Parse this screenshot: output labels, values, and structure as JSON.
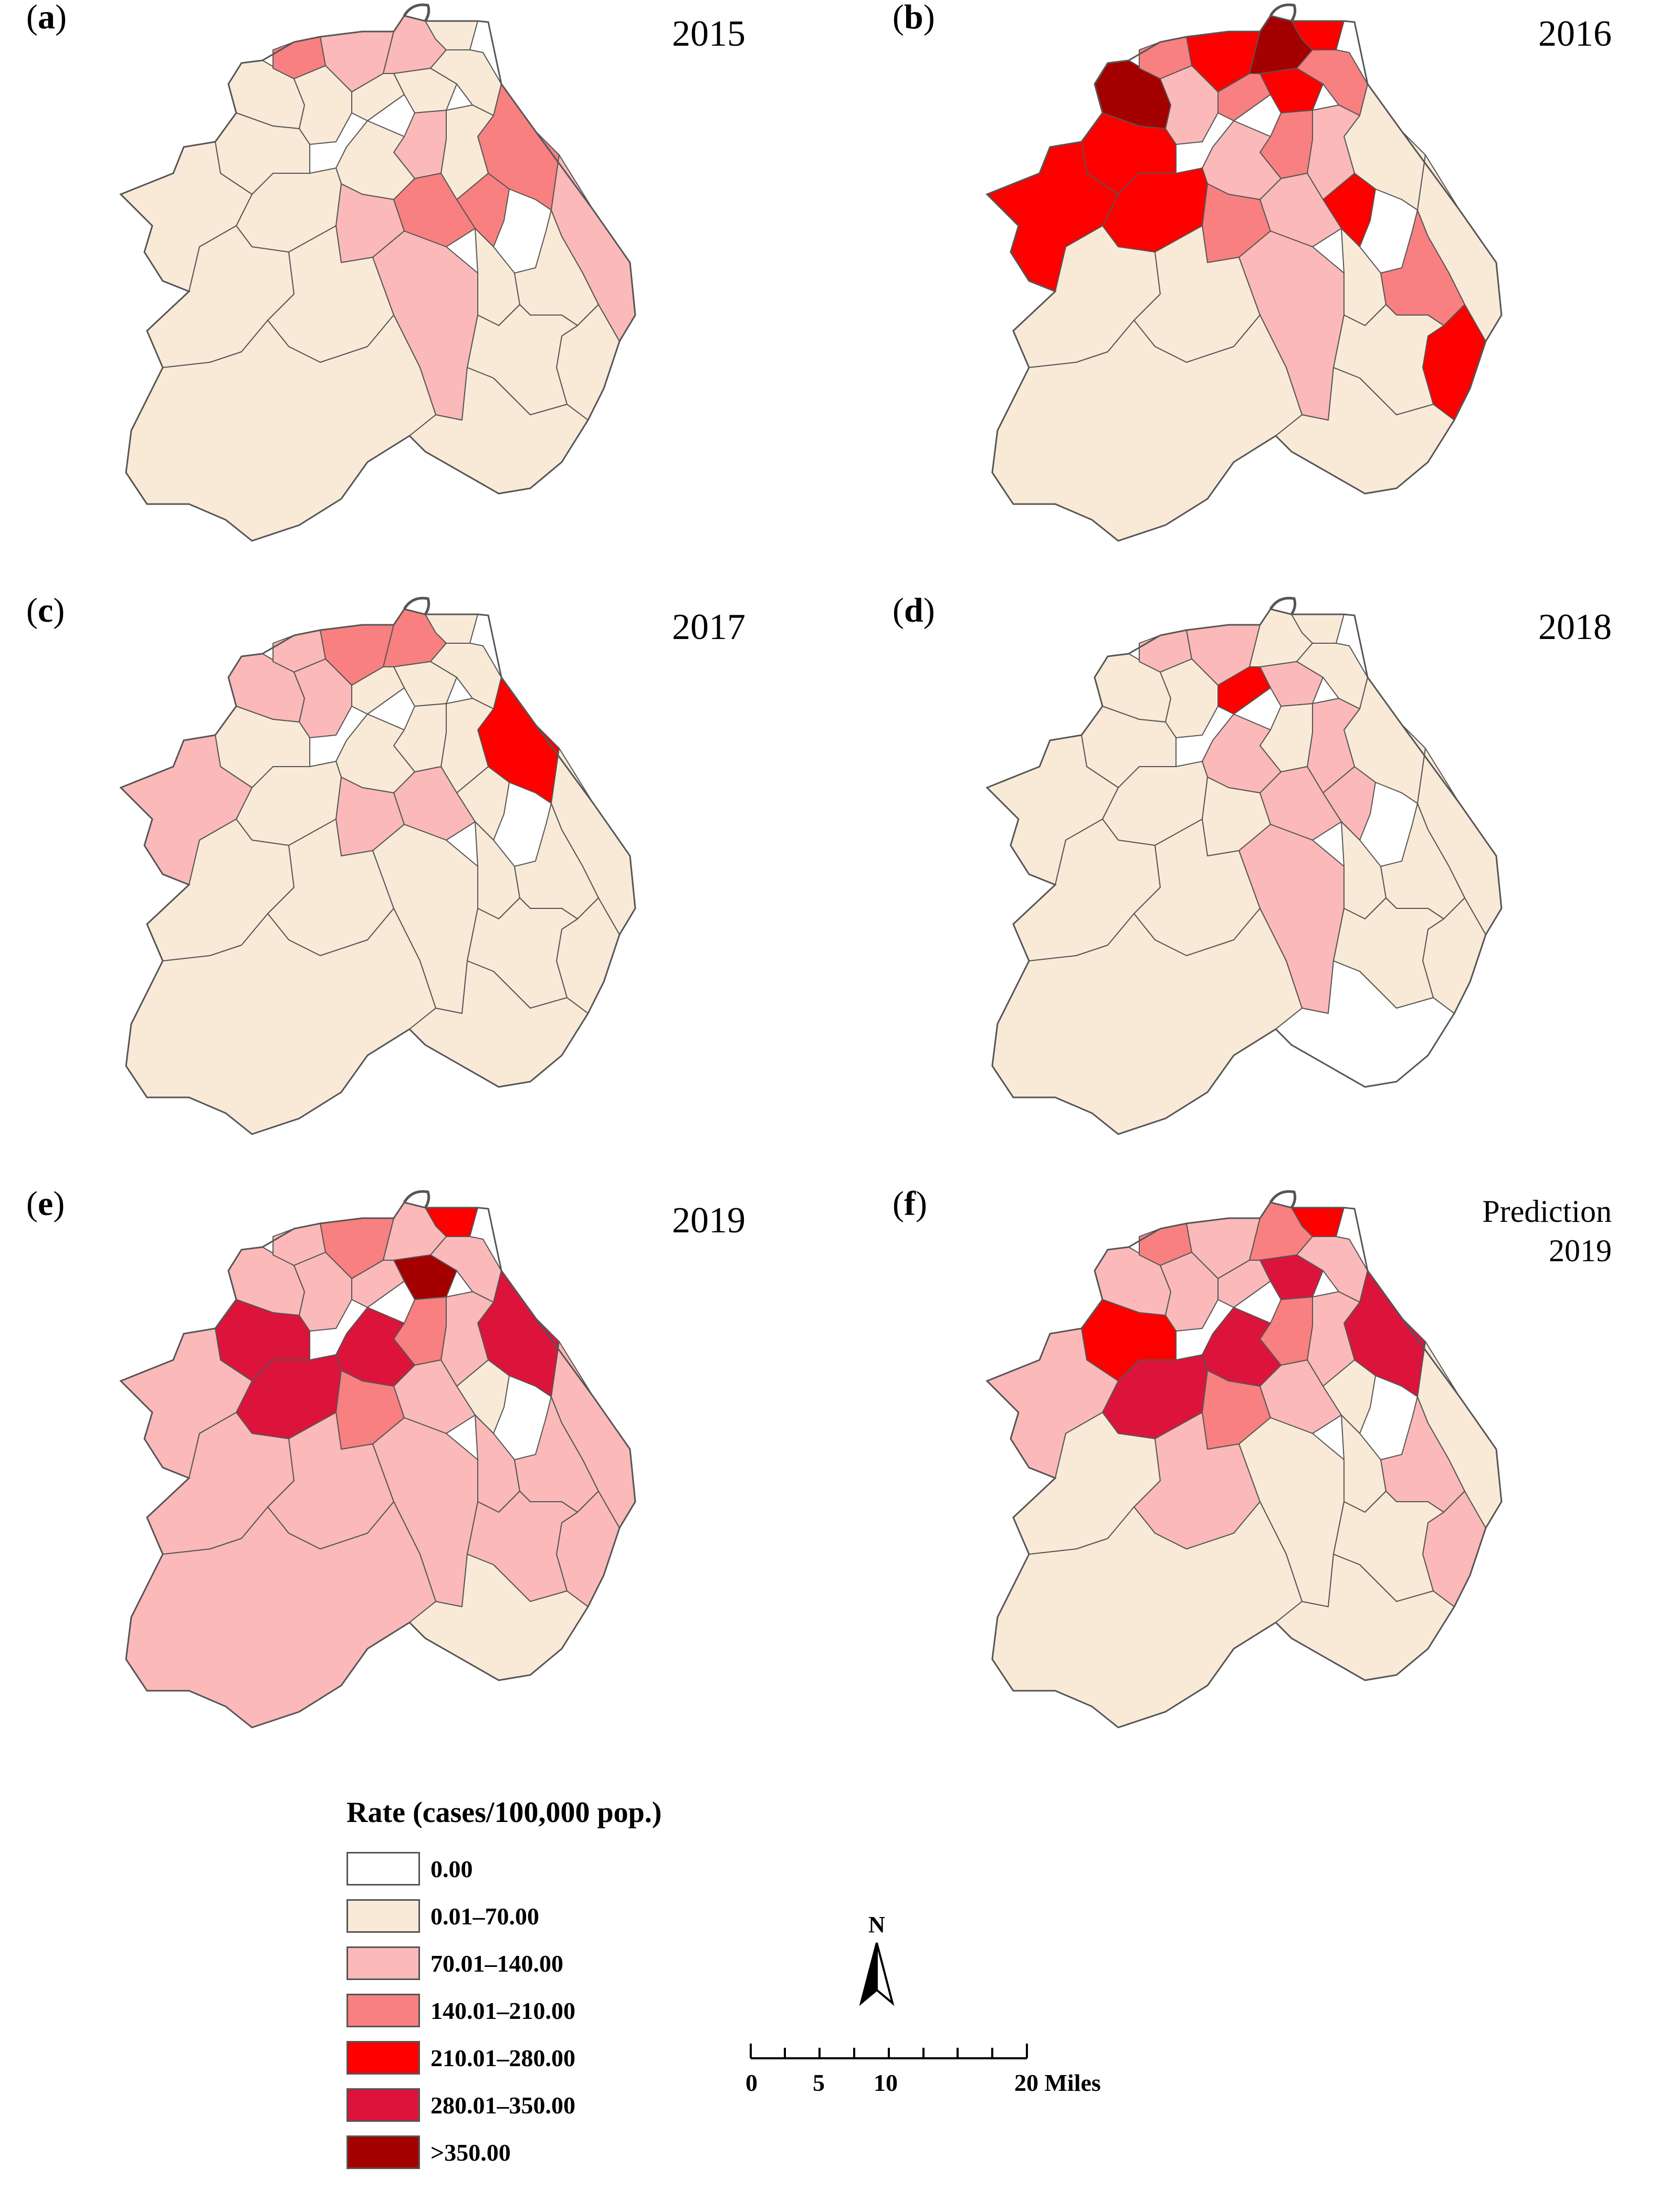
{
  "colors": {
    "c0": "#ffffff",
    "c1": "#f9ead7",
    "c2": "#fbb9b9",
    "c3": "#f88080",
    "c4": "#ff0000",
    "c5": "#dc143c",
    "c6": "#a50000",
    "boundary": "#555555"
  },
  "panels": [
    {
      "letter": "a",
      "label_open": "(",
      "label_close": ")",
      "title": "2015",
      "regions": {
        "r1": "c1",
        "r2": "c3",
        "r3": "c2",
        "r4": "c2",
        "r5": "c1",
        "r6": "c1",
        "r7": "c1",
        "r8": "c1",
        "r9": "c1",
        "r10": "c3",
        "r11": "c3",
        "r12": "c1",
        "r13": "c2",
        "r14": "c1",
        "r15": "c1",
        "r16": "c1",
        "r17": "c1",
        "r18": "c2",
        "r19": "c3",
        "r20": "c1",
        "r21": "c1",
        "r22": "c1",
        "r23": "c2",
        "r24": "c1",
        "r25": "c1",
        "r26": "c2",
        "r27": "c1",
        "r28": "c1",
        "r29": "c1"
      }
    },
    {
      "letter": "b",
      "label_open": "(",
      "label_close": ")",
      "title": "2016",
      "regions": {
        "r1": "c6",
        "r2": "c3",
        "r3": "c4",
        "r4": "c6",
        "r5": "c3",
        "r6": "c4",
        "r7": "c4",
        "r8": "c3",
        "r9": "c2",
        "r10": "c1",
        "r11": "c4",
        "r12": "c2",
        "r13": "c3",
        "r14": "c2",
        "r15": "c4",
        "r16": "c4",
        "r17": "c4",
        "r18": "c3",
        "r19": "c2",
        "r20": "c1",
        "r21": "c3",
        "r22": "c4",
        "r23": "c1",
        "r24": "c1",
        "r25": "c1",
        "r26": "c2",
        "r27": "c1",
        "r28": "c1",
        "r29": "c1"
      }
    },
    {
      "letter": "c",
      "label_open": "(",
      "label_close": ")",
      "title": "2017",
      "regions": {
        "r1": "c2",
        "r2": "c2",
        "r3": "c3",
        "r4": "c3",
        "r5": "c1",
        "r6": "c1",
        "r7": "c1",
        "r8": "c1",
        "r9": "c2",
        "r10": "c4",
        "r11": "c1",
        "r12": "c1",
        "r13": "c1",
        "r14": "c1",
        "r15": "c1",
        "r16": "c1",
        "r17": "c2",
        "r18": "c2",
        "r19": "c2",
        "r20": "c1",
        "r21": "c1",
        "r22": "c1",
        "r23": "c1",
        "r24": "c1",
        "r25": "c1",
        "r26": "c1",
        "r27": "c1",
        "r28": "c1",
        "r29": "c1"
      }
    },
    {
      "letter": "d",
      "label_open": "(",
      "label_close": ")",
      "title": "2018",
      "regions": {
        "r1": "c1",
        "r2": "c2",
        "r3": "c2",
        "r4": "c1",
        "r5": "c1",
        "r6": "c1",
        "r7": "c2",
        "r8": "c4",
        "r9": "c1",
        "r10": "c1",
        "r11": "c2",
        "r12": "c2",
        "r13": "c1",
        "r14": "c2",
        "r15": "c1",
        "r16": "c1",
        "r17": "c1",
        "r18": "c1",
        "r19": "c2",
        "r20": "c1",
        "r21": "c1",
        "r22": "c1",
        "r23": "c1",
        "r24": "c1",
        "r25": "c1",
        "r26": "c2",
        "r27": "c1",
        "r28": "c1",
        "r29": "c0"
      }
    },
    {
      "letter": "e",
      "label_open": "(",
      "label_close": ")",
      "title": "2019",
      "regions": {
        "r1": "c2",
        "r2": "c2",
        "r3": "c3",
        "r4": "c2",
        "r5": "c2",
        "r6": "c4",
        "r7": "c6",
        "r8": "c2",
        "r9": "c2",
        "r10": "c5",
        "r11": "c1",
        "r12": "c2",
        "r13": "c3",
        "r14": "c5",
        "r15": "c5",
        "r16": "c5",
        "r17": "c2",
        "r18": "c3",
        "r19": "c2",
        "r20": "c2",
        "r21": "c2",
        "r22": "c2",
        "r23": "c2",
        "r24": "c2",
        "r25": "c2",
        "r26": "c2",
        "r27": "c2",
        "r28": "c2",
        "r29": "c1"
      }
    },
    {
      "letter": "f",
      "label_open": "(",
      "label_close": ")",
      "title": "Prediction",
      "title2": "2019",
      "regions": {
        "r1": "c2",
        "r2": "c3",
        "r3": "c2",
        "r4": "c3",
        "r5": "c2",
        "r6": "c4",
        "r7": "c5",
        "r8": "c2",
        "r9": "c2",
        "r10": "c5",
        "r11": "c1",
        "r12": "c2",
        "r13": "c3",
        "r14": "c5",
        "r15": "c5",
        "r16": "c4",
        "r17": "c2",
        "r18": "c3",
        "r19": "c2",
        "r20": "c1",
        "r21": "c2",
        "r22": "c2",
        "r23": "c1",
        "r24": "c1",
        "r25": "c2",
        "r26": "c1",
        "r27": "c1",
        "r28": "c1",
        "r29": "c1"
      }
    }
  ],
  "legend": {
    "title": "Rate (cases/100,000 pop.)",
    "items": [
      {
        "label": "0.00",
        "color": "#ffffff"
      },
      {
        "label": "0.01–70.00",
        "color": "#f9ead7"
      },
      {
        "label": "70.01–140.00",
        "color": "#fbb9b9"
      },
      {
        "label": "140.01–210.00",
        "color": "#f88080"
      },
      {
        "label": "210.01–280.00",
        "color": "#ff0000"
      },
      {
        "label": "280.01–350.00",
        "color": "#dc143c"
      },
      {
        "label": ">350.00",
        "color": "#a50000"
      }
    ]
  },
  "north_arrow": {
    "label": "N"
  },
  "scale": {
    "ticks": [
      "0",
      "5",
      "10",
      "20 Miles"
    ]
  }
}
